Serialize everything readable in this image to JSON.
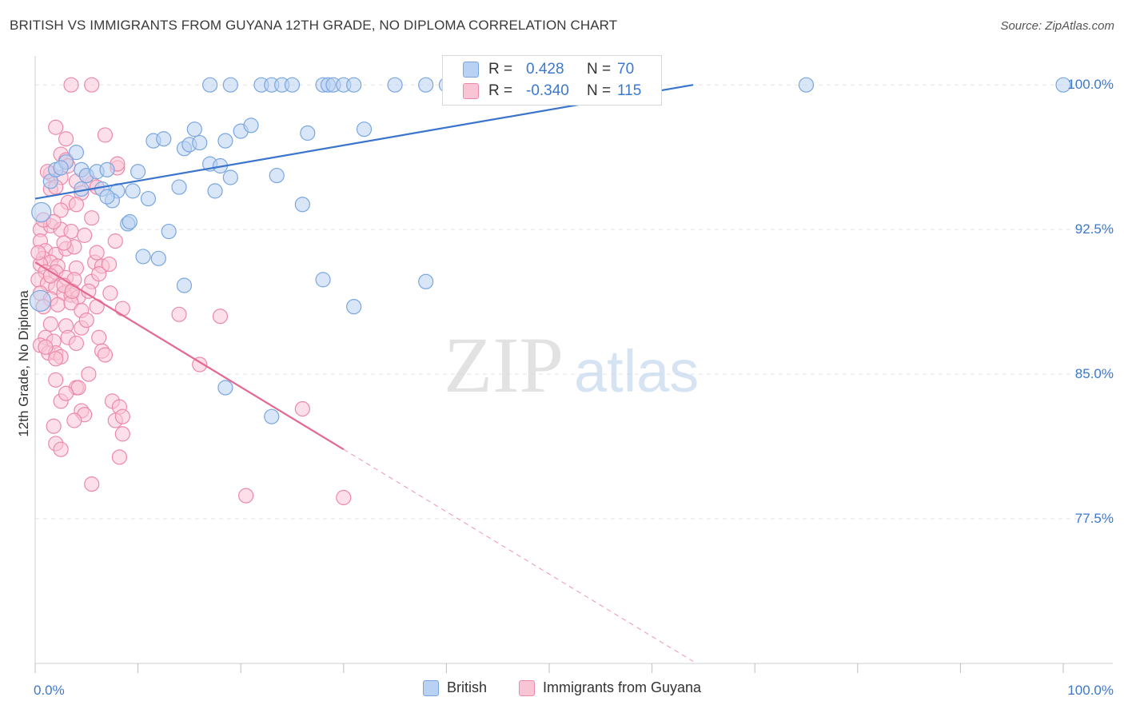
{
  "title": "BRITISH VS IMMIGRANTS FROM GUYANA 12TH GRADE, NO DIPLOMA CORRELATION CHART",
  "source": "Source: ZipAtlas.com",
  "watermark": {
    "zip": "ZIP",
    "atlas": "atlas"
  },
  "stats": [
    {
      "label": "R = ",
      "value": "0.428",
      "n_label": "N = ",
      "n_value": "70",
      "color": "#b9d1f3",
      "border": "#7aa6e0"
    },
    {
      "label": "R = ",
      "value": "-0.340",
      "n_label": "N = ",
      "n_value": "115",
      "color": "#f9c5d5",
      "border": "#ec89a9"
    }
  ],
  "legend": [
    {
      "name": "British"
    },
    {
      "name": "Immigrants from Guyana"
    }
  ],
  "chart_data": {
    "type": "scatter",
    "ylabel": "12th Grade, No Diploma",
    "xlabel": "",
    "xlim": [
      0,
      100
    ],
    "ylim": [
      70,
      101.5
    ],
    "x_ticks": [
      0,
      10,
      20,
      30,
      40,
      50,
      60,
      70,
      80,
      90,
      100
    ],
    "x_tick_labels": [
      {
        "x": 0,
        "label": "0.0%"
      },
      {
        "x": 100,
        "label": "100.0%"
      }
    ],
    "y_ticks": [
      {
        "y": 100,
        "label": "100.0%"
      },
      {
        "y": 92.5,
        "label": "92.5%"
      },
      {
        "y": 85,
        "label": "85.0%"
      },
      {
        "y": 77.5,
        "label": "77.5%"
      }
    ],
    "series": [
      {
        "name": "British",
        "color": "#7aa6e0",
        "fill": "#b9d1f3",
        "trend": {
          "x0": 0,
          "y0": 94.1,
          "x1": 64,
          "y1": 100,
          "x_dash_end": 64
        },
        "points": [
          [
            17,
            100.0
          ],
          [
            19,
            100.0
          ],
          [
            22,
            100.0
          ],
          [
            23,
            100.0
          ],
          [
            24,
            100.0
          ],
          [
            25,
            100.0
          ],
          [
            28,
            100.0
          ],
          [
            28.5,
            100.0
          ],
          [
            29,
            100.0
          ],
          [
            30,
            100.0
          ],
          [
            31,
            100.0
          ],
          [
            35,
            100.0
          ],
          [
            38,
            100.0
          ],
          [
            40,
            100.0
          ],
          [
            42,
            100.0
          ],
          [
            43,
            100.0
          ],
          [
            44,
            100.0
          ],
          [
            45,
            100.0
          ],
          [
            47,
            100.0
          ],
          [
            48,
            100.0
          ],
          [
            75,
            100.0
          ],
          [
            100,
            100.0
          ],
          [
            1.5,
            95.0
          ],
          [
            2,
            95.6
          ],
          [
            3,
            96.0
          ],
          [
            4,
            96.5
          ],
          [
            4.5,
            95.6
          ],
          [
            5,
            95.3
          ],
          [
            6,
            95.5
          ],
          [
            7,
            95.6
          ],
          [
            6.5,
            94.6
          ],
          [
            8,
            94.5
          ],
          [
            7.5,
            94.0
          ],
          [
            10,
            95.5
          ],
          [
            11.5,
            97.1
          ],
          [
            12.5,
            97.2
          ],
          [
            14,
            94.7
          ],
          [
            14.5,
            96.7
          ],
          [
            15,
            96.9
          ],
          [
            15.5,
            97.7
          ],
          [
            16,
            97.0
          ],
          [
            17,
            95.9
          ],
          [
            18,
            95.8
          ],
          [
            17.5,
            94.5
          ],
          [
            18.5,
            97.1
          ],
          [
            19,
            95.2
          ],
          [
            20,
            97.6
          ],
          [
            21,
            97.9
          ],
          [
            23.5,
            95.3
          ],
          [
            26,
            93.8
          ],
          [
            26.5,
            97.5
          ],
          [
            32,
            97.7
          ],
          [
            9,
            92.8
          ],
          [
            9.2,
            92.9
          ],
          [
            11,
            94.1
          ],
          [
            13,
            92.4
          ],
          [
            10.5,
            91.1
          ],
          [
            12,
            91.0
          ],
          [
            14.5,
            89.6
          ],
          [
            28,
            89.9
          ],
          [
            31,
            88.5
          ],
          [
            38,
            89.8
          ],
          [
            18.5,
            84.3
          ],
          [
            23,
            82.8
          ],
          [
            0.6,
            93.4
          ],
          [
            0.5,
            88.8
          ],
          [
            4.5,
            94.6
          ],
          [
            7,
            94.2
          ],
          [
            2.5,
            95.7
          ],
          [
            9.5,
            94.5
          ]
        ]
      },
      {
        "name": "Immigrants from Guyana",
        "color": "#ec89a9",
        "fill": "#f9c5d5",
        "trend": {
          "x0": 0,
          "y0": 90.8,
          "x1": 30,
          "y1": 81.1,
          "x_dash_end": 64
        },
        "points": [
          [
            3.5,
            100.0
          ],
          [
            5.5,
            100.0
          ],
          [
            2,
            97.8
          ],
          [
            3,
            97.2
          ],
          [
            6.8,
            97.4
          ],
          [
            2.5,
            96.4
          ],
          [
            3,
            96.1
          ],
          [
            1.5,
            95.4
          ],
          [
            2.5,
            95.2
          ],
          [
            4,
            95.0
          ],
          [
            5.5,
            94.9
          ],
          [
            8,
            95.7
          ],
          [
            5,
            95.3
          ],
          [
            1.5,
            94.6
          ],
          [
            2,
            94.7
          ],
          [
            4.5,
            94.4
          ],
          [
            6,
            94.7
          ],
          [
            3.2,
            93.9
          ],
          [
            4,
            93.8
          ],
          [
            2.5,
            93.5
          ],
          [
            5.5,
            93.1
          ],
          [
            0.5,
            92.5
          ],
          [
            1.5,
            92.7
          ],
          [
            2.5,
            92.5
          ],
          [
            3.5,
            92.4
          ],
          [
            0.5,
            91.9
          ],
          [
            1,
            91.4
          ],
          [
            2,
            91.2
          ],
          [
            3,
            91.5
          ],
          [
            3.8,
            91.6
          ],
          [
            7.8,
            91.9
          ],
          [
            0.8,
            91.0
          ],
          [
            1.5,
            90.8
          ],
          [
            0.5,
            90.7
          ],
          [
            2.2,
            90.6
          ],
          [
            4,
            90.5
          ],
          [
            5.8,
            90.8
          ],
          [
            6.5,
            90.6
          ],
          [
            7.2,
            90.7
          ],
          [
            1,
            90.3
          ],
          [
            2,
            90.3
          ],
          [
            3,
            90.0
          ],
          [
            3.8,
            89.9
          ],
          [
            5.5,
            89.8
          ],
          [
            6.2,
            90.2
          ],
          [
            0.3,
            89.9
          ],
          [
            1.2,
            89.7
          ],
          [
            2,
            89.5
          ],
          [
            2.8,
            89.2
          ],
          [
            3.5,
            89.1
          ],
          [
            4.2,
            89.0
          ],
          [
            5.2,
            89.3
          ],
          [
            7.3,
            89.2
          ],
          [
            0.5,
            89.2
          ],
          [
            1.5,
            88.9
          ],
          [
            2.2,
            88.6
          ],
          [
            3.5,
            88.7
          ],
          [
            4.5,
            88.3
          ],
          [
            6,
            88.5
          ],
          [
            8.5,
            88.4
          ],
          [
            14,
            88.1
          ],
          [
            18,
            88.0
          ],
          [
            1.5,
            87.6
          ],
          [
            3,
            87.5
          ],
          [
            4.5,
            87.4
          ],
          [
            1,
            86.9
          ],
          [
            1.8,
            86.7
          ],
          [
            3.2,
            86.9
          ],
          [
            4,
            86.6
          ],
          [
            6.2,
            86.9
          ],
          [
            0.5,
            86.5
          ],
          [
            1.3,
            86.1
          ],
          [
            2,
            86.1
          ],
          [
            2.5,
            85.9
          ],
          [
            6.5,
            86.2
          ],
          [
            16,
            85.5
          ],
          [
            2,
            84.7
          ],
          [
            4,
            84.3
          ],
          [
            4.2,
            84.3
          ],
          [
            2.5,
            83.6
          ],
          [
            7.5,
            83.6
          ],
          [
            8.2,
            83.3
          ],
          [
            4.5,
            83.1
          ],
          [
            4.8,
            82.9
          ],
          [
            7.8,
            82.6
          ],
          [
            3.8,
            82.6
          ],
          [
            1.8,
            82.3
          ],
          [
            8.5,
            82.8
          ],
          [
            26,
            83.2
          ],
          [
            8.5,
            81.9
          ],
          [
            2,
            81.4
          ],
          [
            2.5,
            81.1
          ],
          [
            8.2,
            80.7
          ],
          [
            5.5,
            79.3
          ],
          [
            20.5,
            78.7
          ],
          [
            30,
            78.6
          ],
          [
            1.2,
            95.5
          ],
          [
            3.2,
            95.8
          ],
          [
            0.8,
            93.0
          ],
          [
            1.8,
            92.9
          ],
          [
            2.8,
            91.8
          ],
          [
            4.8,
            92.2
          ],
          [
            0.3,
            91.3
          ],
          [
            6,
            91.3
          ],
          [
            8,
            95.9
          ],
          [
            1.5,
            90.1
          ],
          [
            2.8,
            89.6
          ],
          [
            3.6,
            89.3
          ],
          [
            0.8,
            88.5
          ],
          [
            5,
            87.8
          ],
          [
            1,
            86.4
          ],
          [
            2,
            85.8
          ],
          [
            5.2,
            85.0
          ],
          [
            6.8,
            86.0
          ],
          [
            3,
            84.0
          ]
        ]
      }
    ]
  }
}
